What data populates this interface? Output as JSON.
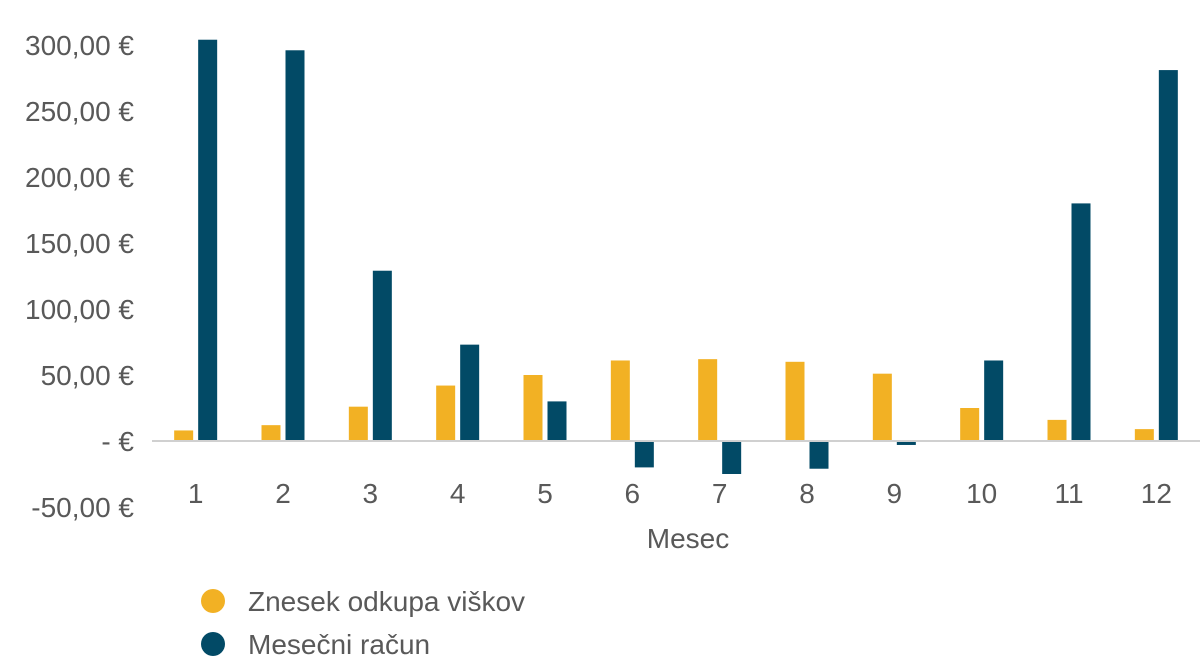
{
  "chart_data": {
    "type": "bar",
    "title": "",
    "xlabel": "Mesec",
    "ylabel": "",
    "categories": [
      "1",
      "2",
      "3",
      "4",
      "5",
      "6",
      "7",
      "8",
      "9",
      "10",
      "11",
      "12"
    ],
    "series": [
      {
        "name": "Znesek odkupa viškov",
        "color": "#F2B124",
        "values": [
          8,
          12,
          26,
          42,
          50,
          61,
          62,
          60,
          51,
          25,
          16,
          9
        ]
      },
      {
        "name": "Mesečni račun",
        "color": "#024A66",
        "values": [
          304,
          296,
          129,
          73,
          30,
          -20,
          -25,
          -21,
          -3,
          61,
          180,
          281
        ]
      }
    ],
    "ylim": [
      -50,
      300
    ],
    "yticks": [
      300,
      250,
      200,
      150,
      100,
      50,
      0,
      -50
    ],
    "ytick_labels": [
      "300,00 €",
      "250,00 €",
      "200,00 €",
      "150,00 €",
      "100,00 €",
      "50,00 €",
      "- €",
      "-50,00 €"
    ],
    "grid": false,
    "legend_position": "bottom-left"
  }
}
